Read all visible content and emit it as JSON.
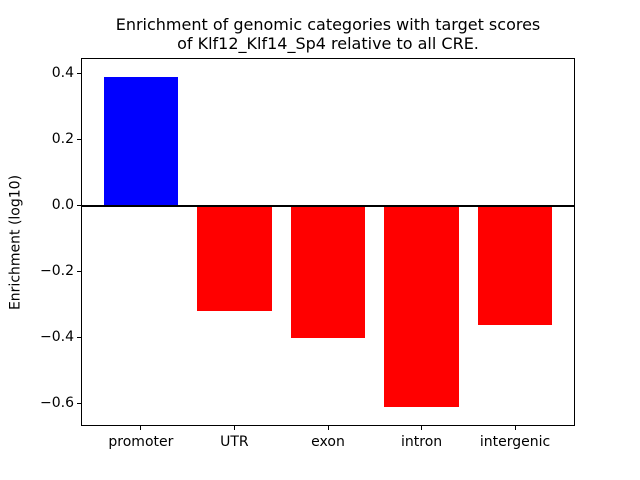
{
  "title": {
    "line1": "Enrichment of genomic categories with target scores",
    "line2": "of Klf12_Klf14_Sp4 relative to all CRE."
  },
  "axes": {
    "ylabel": "Enrichment (log10)"
  },
  "chart_data": {
    "type": "bar",
    "title": "Enrichment of genomic categories with target scores\nof Klf12_Klf14_Sp4 relative to all CRE.",
    "xlabel": "",
    "ylabel": "Enrichment (log10)",
    "categories": [
      "promoter",
      "UTR",
      "exon",
      "intron",
      "intergenic"
    ],
    "values": [
      0.39,
      -0.32,
      -0.4,
      -0.61,
      -0.36
    ],
    "bar_colors": [
      "#0000ff",
      "#ff0000",
      "#ff0000",
      "#ff0000",
      "#ff0000"
    ],
    "positive_color": "#0000ff",
    "negative_color": "#ff0000",
    "ylim": [
      -0.667,
      0.448
    ],
    "yticks": [
      0.4,
      0.2,
      0.0,
      -0.2,
      -0.4,
      -0.6
    ],
    "ytick_labels": [
      "0.4",
      "0.2",
      "0.0",
      "−0.2",
      "−0.4",
      "−0.6"
    ],
    "zero_line": 0,
    "grid": false,
    "legend": false,
    "axis_color": "#000000",
    "background_color": "#ffffff"
  }
}
